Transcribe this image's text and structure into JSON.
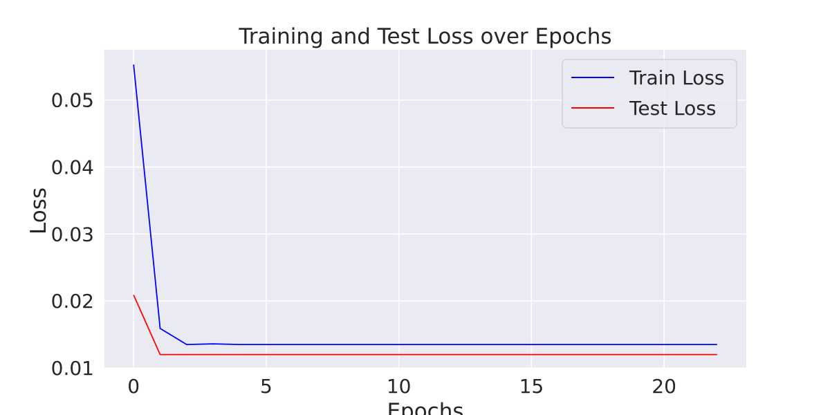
{
  "chart_data": {
    "type": "line",
    "title": "Training and Test Loss over Epochs",
    "xlabel": "Epochs",
    "ylabel": "Loss",
    "xlim": [
      -1.1,
      23.1
    ],
    "ylim": [
      0.01,
      0.0575
    ],
    "xticks": [
      0,
      5,
      10,
      15,
      20
    ],
    "yticks": [
      0.01,
      0.02,
      0.03,
      0.04,
      0.05
    ],
    "ytick_labels": [
      "0.01",
      "0.02",
      "0.03",
      "0.04",
      "0.05"
    ],
    "grid": true,
    "legend_position": "top-right",
    "x": [
      0,
      1,
      2,
      3,
      4,
      5,
      6,
      7,
      8,
      9,
      10,
      11,
      12,
      13,
      14,
      15,
      16,
      17,
      18,
      19,
      20,
      21,
      22
    ],
    "series": [
      {
        "name": "Train Loss",
        "color": "#0000ff",
        "values": [
          0.0553,
          0.0159,
          0.0135,
          0.0136,
          0.0135,
          0.0135,
          0.0135,
          0.0135,
          0.0135,
          0.0135,
          0.0135,
          0.0135,
          0.0135,
          0.0135,
          0.0135,
          0.0135,
          0.0135,
          0.0135,
          0.0135,
          0.0135,
          0.0135,
          0.0135,
          0.0135
        ]
      },
      {
        "name": "Test Loss",
        "color": "#ff0000",
        "values": [
          0.0209,
          0.012,
          0.012,
          0.012,
          0.012,
          0.012,
          0.012,
          0.012,
          0.012,
          0.012,
          0.012,
          0.012,
          0.012,
          0.012,
          0.012,
          0.012,
          0.012,
          0.012,
          0.012,
          0.012,
          0.012,
          0.012,
          0.012
        ]
      }
    ]
  },
  "style": {
    "plot_background": "#eaeaf2",
    "grid_color": "#ffffff",
    "legend_border": "#cccccc"
  }
}
